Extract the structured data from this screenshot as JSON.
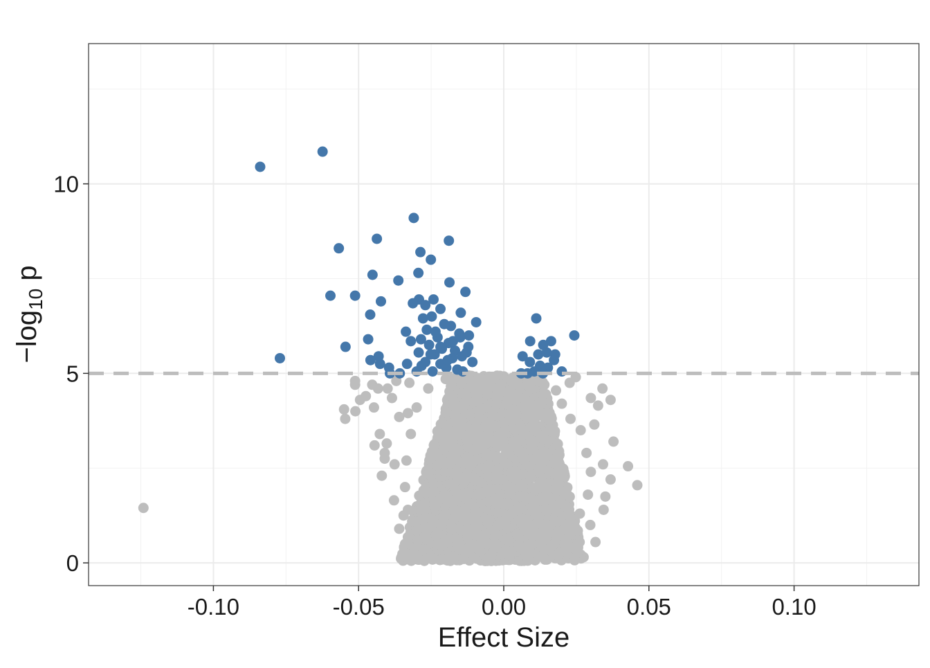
{
  "chart_data": {
    "type": "scatter",
    "title": "",
    "xlabel": "Effect Size",
    "ylabel": {
      "prefix": "−log",
      "subscript": "10",
      "suffix": " p"
    },
    "xlim": [
      -0.143,
      0.143
    ],
    "ylim": [
      -0.6,
      13.7
    ],
    "x_ticks": [
      {
        "value": -0.1,
        "label": "-0.10"
      },
      {
        "value": -0.05,
        "label": "-0.05"
      },
      {
        "value": 0.0,
        "label": "0.00"
      },
      {
        "value": 0.05,
        "label": "0.05"
      },
      {
        "value": 0.1,
        "label": "0.10"
      }
    ],
    "y_ticks": [
      {
        "value": 0,
        "label": "0"
      },
      {
        "value": 5,
        "label": "5"
      },
      {
        "value": 10,
        "label": "10"
      }
    ],
    "grid": true,
    "threshold": {
      "y": 5,
      "style": "dashed",
      "color": "#bdbdbd"
    },
    "colors": {
      "significant": "#4477aa",
      "not_significant": "#bdbdbd"
    },
    "series": [
      {
        "name": "significant",
        "color": "#4477aa",
        "points": [
          [
            -0.0624,
            10.85
          ],
          [
            -0.0839,
            10.45
          ],
          [
            -0.031,
            9.1
          ],
          [
            -0.0189,
            8.5
          ],
          [
            -0.0437,
            8.55
          ],
          [
            -0.0568,
            8.3
          ],
          [
            -0.0287,
            8.2
          ],
          [
            -0.0251,
            8.0
          ],
          [
            -0.0294,
            7.65
          ],
          [
            -0.0452,
            7.6
          ],
          [
            -0.0363,
            7.45
          ],
          [
            -0.0187,
            7.4
          ],
          [
            -0.0132,
            7.15
          ],
          [
            -0.0597,
            7.05
          ],
          [
            -0.0512,
            7.05
          ],
          [
            -0.0423,
            6.9
          ],
          [
            -0.0242,
            6.95
          ],
          [
            -0.0292,
            6.95
          ],
          [
            -0.0313,
            6.85
          ],
          [
            -0.027,
            6.8
          ],
          [
            -0.0218,
            6.7
          ],
          [
            -0.0148,
            6.6
          ],
          [
            -0.046,
            6.55
          ],
          [
            -0.0248,
            6.5
          ],
          [
            -0.0278,
            6.45
          ],
          [
            -0.0095,
            6.35
          ],
          [
            -0.0205,
            6.3
          ],
          [
            -0.0182,
            6.25
          ],
          [
            -0.0337,
            6.1
          ],
          [
            -0.0265,
            6.15
          ],
          [
            -0.0153,
            6.05
          ],
          [
            -0.012,
            6.0
          ],
          [
            -0.0228,
            5.95
          ],
          [
            -0.0285,
            5.9
          ],
          [
            -0.0467,
            5.9
          ],
          [
            -0.032,
            5.85
          ],
          [
            -0.019,
            5.8
          ],
          [
            -0.0257,
            5.75
          ],
          [
            -0.0122,
            5.7
          ],
          [
            -0.0545,
            5.7
          ],
          [
            -0.0213,
            5.65
          ],
          [
            -0.0168,
            5.6
          ],
          [
            -0.0293,
            5.55
          ],
          [
            -0.0238,
            5.5
          ],
          [
            -0.0144,
            5.45
          ],
          [
            -0.0431,
            5.45
          ],
          [
            -0.0177,
            5.4
          ],
          [
            -0.0771,
            5.4
          ],
          [
            -0.0459,
            5.35
          ],
          [
            -0.027,
            5.3
          ],
          [
            -0.0108,
            5.3
          ],
          [
            -0.0218,
            5.25
          ],
          [
            -0.0333,
            5.25
          ],
          [
            -0.0426,
            5.25
          ],
          [
            -0.0395,
            5.15
          ],
          [
            -0.016,
            5.1
          ],
          [
            -0.0245,
            5.05
          ],
          [
            -0.0358,
            5.0
          ],
          [
            -0.0392,
            5.0
          ],
          [
            -0.0283,
            5.2
          ],
          [
            -0.0198,
            5.15
          ],
          [
            -0.0141,
            5.05
          ],
          [
            -0.0252,
            5.5
          ],
          [
            -0.0175,
            5.85
          ],
          [
            -0.0235,
            6.1
          ],
          [
            -0.015,
            5.95
          ],
          [
            -0.0218,
            5.7
          ],
          [
            -0.0193,
            5.35
          ],
          [
            -0.0128,
            5.55
          ],
          [
            -0.03,
            5.05
          ],
          [
            0.0112,
            6.45
          ],
          [
            0.0243,
            6.0
          ],
          [
            0.0091,
            5.85
          ],
          [
            0.0163,
            5.85
          ],
          [
            0.0136,
            5.75
          ],
          [
            0.0119,
            5.5
          ],
          [
            0.0177,
            5.5
          ],
          [
            0.0148,
            5.55
          ],
          [
            0.0065,
            5.45
          ],
          [
            0.009,
            5.3
          ],
          [
            0.0173,
            5.35
          ],
          [
            0.0125,
            5.2
          ],
          [
            0.0152,
            5.15
          ],
          [
            0.02,
            5.05
          ],
          [
            0.0105,
            5.05
          ],
          [
            0.0082,
            5.0
          ],
          [
            0.0135,
            5.0
          ],
          [
            0.006,
            5.0
          ]
        ]
      },
      {
        "name": "not_significant",
        "color": "#bdbdbd",
        "points": [
          [
            -0.1241,
            1.45
          ],
          [
            0.046,
            2.05
          ],
          [
            0.0428,
            2.55
          ],
          [
            0.0378,
            3.2
          ],
          [
            0.0368,
            2.2
          ],
          [
            0.0342,
            2.6
          ],
          [
            0.035,
            1.75
          ],
          [
            0.034,
            4.6
          ],
          [
            0.0368,
            4.3
          ],
          [
            0.0316,
            0.55
          ],
          [
            0.0344,
            1.4
          ],
          [
            0.0298,
            1.0
          ],
          [
            0.0312,
            3.65
          ],
          [
            0.03,
            4.35
          ],
          [
            0.0248,
            4.9
          ],
          [
            0.0227,
            4.75
          ],
          [
            0.0325,
            4.15
          ],
          [
            -0.0546,
            3.8
          ],
          [
            -0.055,
            4.05
          ],
          [
            -0.0511,
            4.0
          ],
          [
            -0.0495,
            4.3
          ],
          [
            -0.0512,
            4.7
          ],
          [
            -0.0512,
            4.8
          ],
          [
            -0.0453,
            4.7
          ],
          [
            -0.0475,
            4.4
          ],
          [
            -0.0447,
            4.1
          ],
          [
            -0.0433,
            4.6
          ],
          [
            -0.0427,
            3.4
          ],
          [
            -0.0445,
            3.1
          ],
          [
            -0.041,
            2.9
          ],
          [
            -0.042,
            2.3
          ],
          [
            -0.041,
            2.75
          ],
          [
            -0.0376,
            2.6
          ],
          [
            -0.0378,
            1.65
          ],
          [
            -0.036,
            0.9
          ],
          [
            -0.034,
            0.5
          ],
          [
            -0.0345,
            1.25
          ],
          [
            -0.0385,
            4.35
          ],
          [
            -0.04,
            4.6
          ],
          [
            -0.037,
            4.8
          ],
          [
            -0.0325,
            4.75
          ],
          [
            -0.033,
            3.95
          ],
          [
            -0.0403,
            3.15
          ],
          [
            -0.036,
            3.85
          ],
          [
            -0.0296,
            0.6
          ],
          [
            -0.0277,
            0.35
          ],
          [
            0.0025,
            4.8
          ],
          [
            0.0055,
            4.65
          ],
          [
            0.0095,
            4.6
          ],
          [
            0.014,
            4.7
          ],
          [
            0.018,
            4.55
          ],
          [
            0.02,
            4.2
          ],
          [
            0.023,
            3.8
          ],
          [
            0.0265,
            3.5
          ],
          [
            0.0285,
            2.9
          ],
          [
            0.03,
            2.4
          ],
          [
            0.029,
            1.8
          ],
          [
            0.0262,
            1.3
          ],
          [
            0.0255,
            0.85
          ],
          [
            0.021,
            0.5
          ],
          [
            0.015,
            0.35
          ],
          [
            0.009,
            0.25
          ],
          [
            0.002,
            0.2
          ],
          [
            -0.008,
            0.3
          ],
          [
            -0.015,
            0.35
          ],
          [
            -0.023,
            0.5
          ],
          [
            -0.03,
            0.85
          ],
          [
            -0.033,
            1.4
          ],
          [
            -0.034,
            2.0
          ],
          [
            -0.0335,
            2.7
          ],
          [
            -0.032,
            3.4
          ],
          [
            -0.03,
            4.1
          ],
          [
            -0.026,
            4.6
          ],
          [
            -0.02,
            4.85
          ],
          [
            -0.013,
            4.85
          ],
          [
            -0.006,
            4.8
          ],
          [
            -0.001,
            4.7
          ]
        ]
      }
    ],
    "dense_cluster": {
      "color": "#bdbdbd",
      "x_center": -0.004,
      "x_spread": 0.032,
      "y_min": 0.05,
      "y_max": 4.95
    }
  }
}
